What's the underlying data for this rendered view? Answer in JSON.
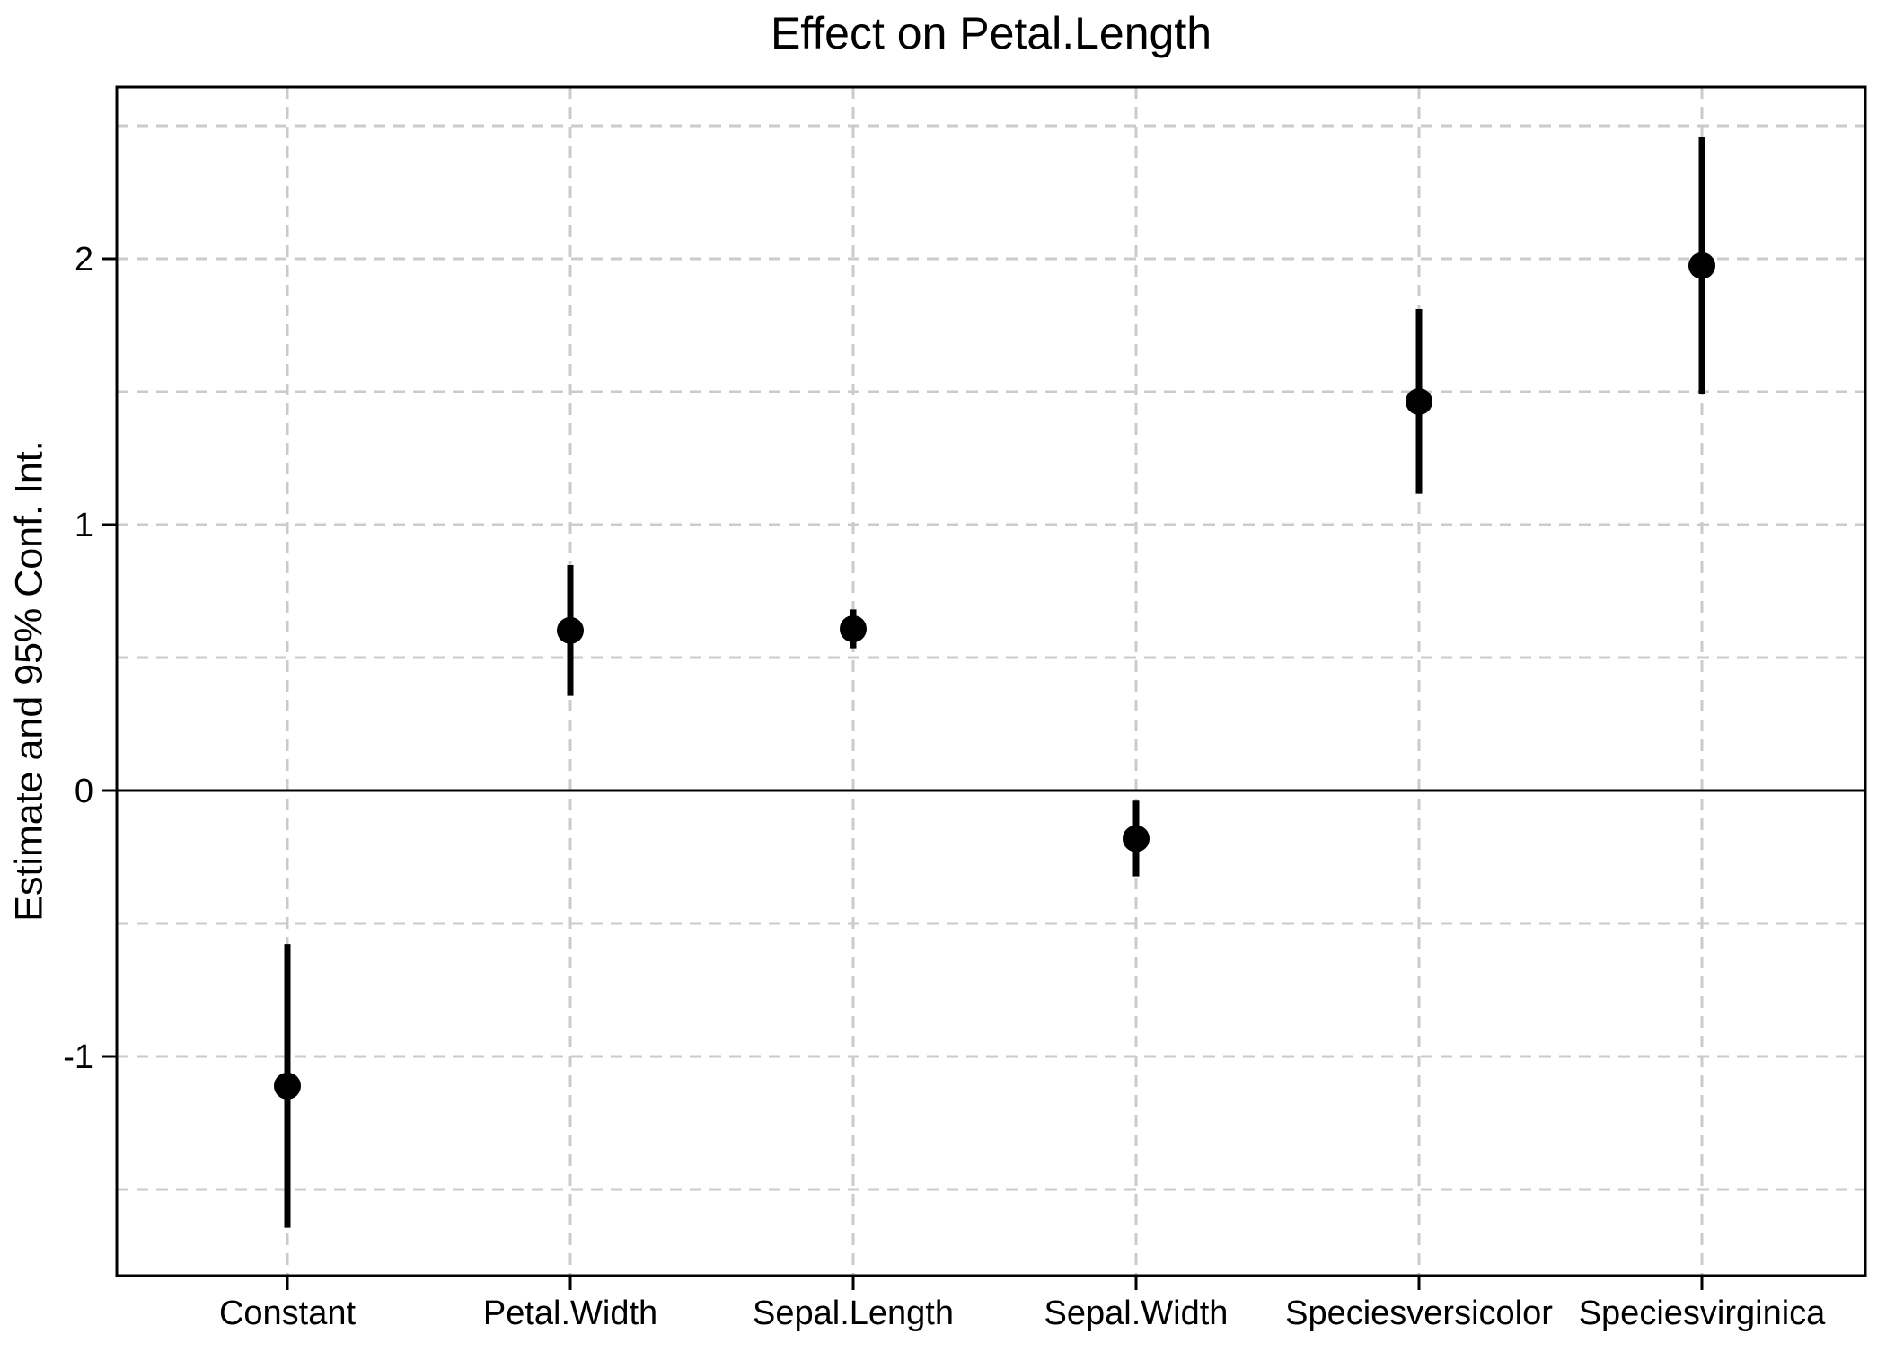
{
  "chart_data": {
    "type": "scatter",
    "subtype": "coefficient-plot-with-error-bars",
    "title": "Effect on Petal.Length",
    "xlabel": "",
    "ylabel": "Estimate and 95% Conf. Int.",
    "categories": [
      "Constant",
      "Petal.Width",
      "Sepal.Length",
      "Sepal.Width",
      "Speciesversicolor",
      "Speciesvirginica"
    ],
    "series": [
      {
        "name": "Estimate and 95% Conf. Int.",
        "points": [
          {
            "label": "Constant",
            "estimate": -1.111,
            "ci_low": -1.644,
            "ci_high": -0.578
          },
          {
            "label": "Petal.Width",
            "estimate": 0.602,
            "ci_low": 0.356,
            "ci_high": 0.848
          },
          {
            "label": "Sepal.Length",
            "estimate": 0.608,
            "ci_low": 0.535,
            "ci_high": 0.681
          },
          {
            "label": "Sepal.Width",
            "estimate": -0.181,
            "ci_low": -0.323,
            "ci_high": -0.038
          },
          {
            "label": "Speciesversicolor",
            "estimate": 1.463,
            "ci_low": 1.116,
            "ci_high": 1.811
          },
          {
            "label": "Speciesvirginica",
            "estimate": 1.974,
            "ci_low": 1.49,
            "ci_high": 2.458
          }
        ]
      }
    ],
    "yticks": [
      -1,
      0,
      1,
      2
    ],
    "ytick_labels": [
      "-1",
      "0",
      "1",
      "2"
    ],
    "ylim": [
      -1.82,
      2.65
    ],
    "grid": {
      "show": true,
      "step": 0.5,
      "min": -1.5,
      "max": 2.5,
      "color": "#cbcbcb",
      "style": "dashed"
    },
    "zero_line": {
      "value": 0,
      "color": "#000000"
    },
    "legend": "none",
    "colors": {
      "point": "#000000",
      "error_bar": "#000000",
      "axis_frame": "#000000",
      "text": "#000000",
      "background": "#ffffff"
    }
  }
}
